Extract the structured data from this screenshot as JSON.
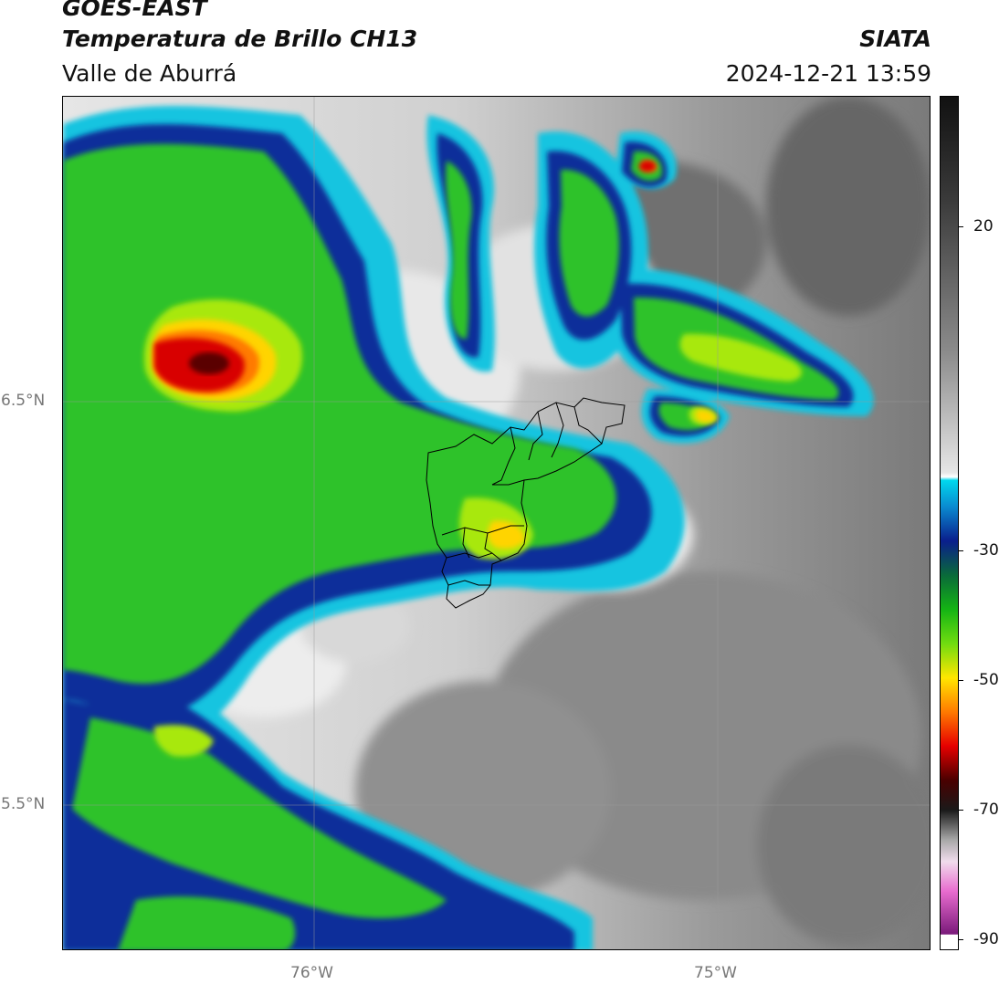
{
  "header": {
    "satellite": "GOES-EAST",
    "product": "Temperatura de Brillo CH13",
    "region": "Valle de Aburrá",
    "organization": "SIATA",
    "datetime": "2024-12-21 13:59"
  },
  "axes": {
    "lat_labels": [
      "6.5°N",
      "5.5°N"
    ],
    "lon_labels": [
      "76°W",
      "75°W"
    ]
  },
  "colorbar": {
    "tick_labels": [
      "20",
      "-30",
      "-50",
      "-70",
      "-90"
    ],
    "colors": {
      "warm_gray_high": "#1a1a1a",
      "warm_gray_low": "#f2f2f2",
      "cyan": "#00c8e6",
      "dark_blue": "#0a1e8c",
      "green": "#22c21e",
      "yellow_green": "#b4f000",
      "yellow": "#ffe600",
      "orange": "#ff8c00",
      "red": "#e60000",
      "dark_red": "#500000",
      "pink": "#e86ccf",
      "purple": "#8a1a8a"
    }
  }
}
